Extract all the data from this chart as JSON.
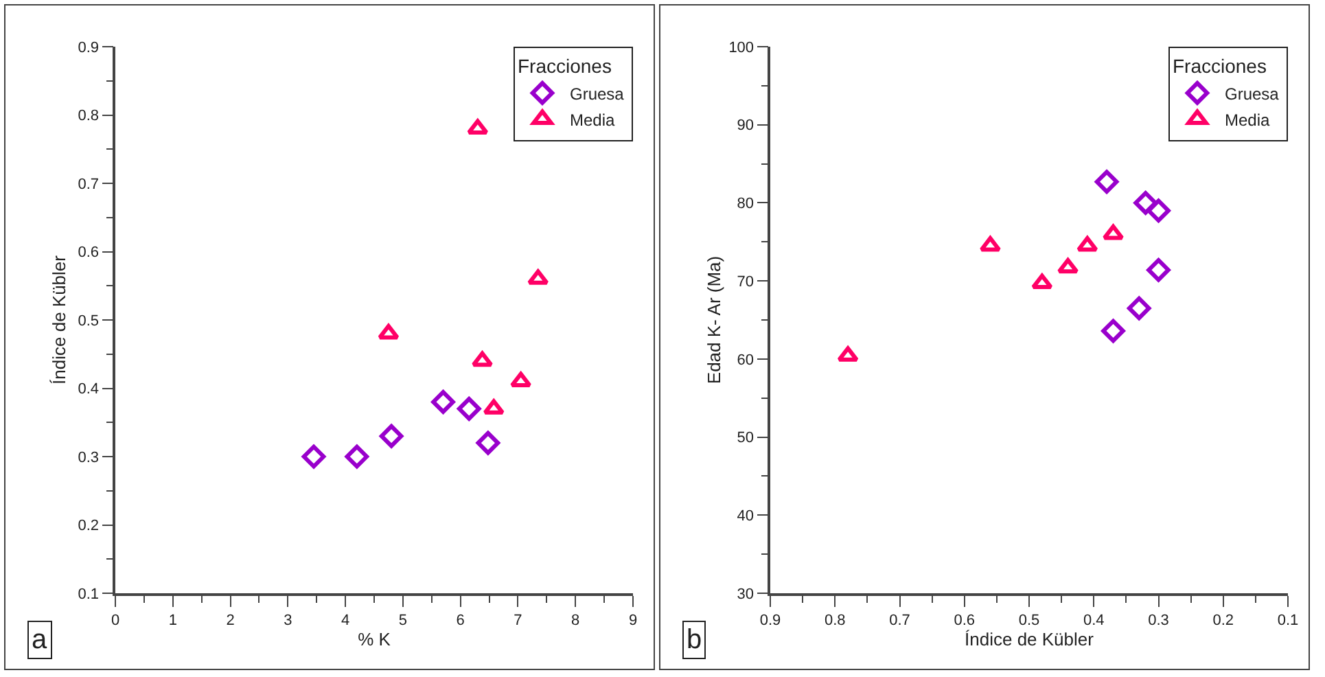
{
  "chart_data": [
    {
      "type": "scatter",
      "xlabel": "% K",
      "ylabel": "Índice de Kübler",
      "legend": "top right",
      "legend_title": "Fracciones",
      "annotations": [
        "a"
      ],
      "xlim": [
        0,
        9
      ],
      "xticks": [
        0,
        1,
        2,
        3,
        4,
        5,
        6,
        7,
        8,
        9
      ],
      "ylim": [
        0.1,
        0.9
      ],
      "yticks": [
        0.1,
        0.2,
        0.3,
        0.4,
        0.5,
        0.6,
        0.7,
        0.8,
        0.9
      ],
      "series": [
        {
          "name": "Gruesa",
          "color": "#9900cc",
          "marker": "diamond",
          "x": [
            3.45,
            4.2,
            4.8,
            5.7,
            6.15,
            6.48
          ],
          "values": [
            0.3,
            0.3,
            0.33,
            0.38,
            0.37,
            0.32
          ]
        },
        {
          "name": "Media",
          "color": "#ff0066",
          "marker": "triangle",
          "x": [
            6.3,
            4.75,
            7.35,
            6.38,
            7.05,
            6.58
          ],
          "values": [
            0.78,
            0.48,
            0.56,
            0.44,
            0.41,
            0.37
          ]
        }
      ]
    },
    {
      "type": "scatter",
      "xlabel": "Índice de Kübler",
      "ylabel": "Edad K- Ar (Ma)",
      "legend": "top right",
      "legend_title": "Fracciones",
      "annotations": [
        "b"
      ],
      "xlim": [
        0.9,
        0.1
      ],
      "xticks": [
        0.9,
        0.8,
        0.7,
        0.6,
        0.5,
        0.4,
        0.3,
        0.2,
        0.1
      ],
      "ylim": [
        30,
        100
      ],
      "yticks": [
        30,
        40,
        50,
        60,
        70,
        80,
        90,
        100
      ],
      "series": [
        {
          "name": "Gruesa",
          "color": "#9900cc",
          "marker": "diamond",
          "x": [
            0.38,
            0.32,
            0.3,
            0.3,
            0.33,
            0.37
          ],
          "values": [
            82.7,
            80,
            79,
            71.4,
            66.5,
            63.6
          ]
        },
        {
          "name": "Media",
          "color": "#ff0066",
          "marker": "triangle",
          "x": [
            0.56,
            0.48,
            0.44,
            0.41,
            0.37,
            0.78
          ],
          "values": [
            74.5,
            69.7,
            71.7,
            74.5,
            76,
            60.4
          ]
        }
      ]
    }
  ]
}
